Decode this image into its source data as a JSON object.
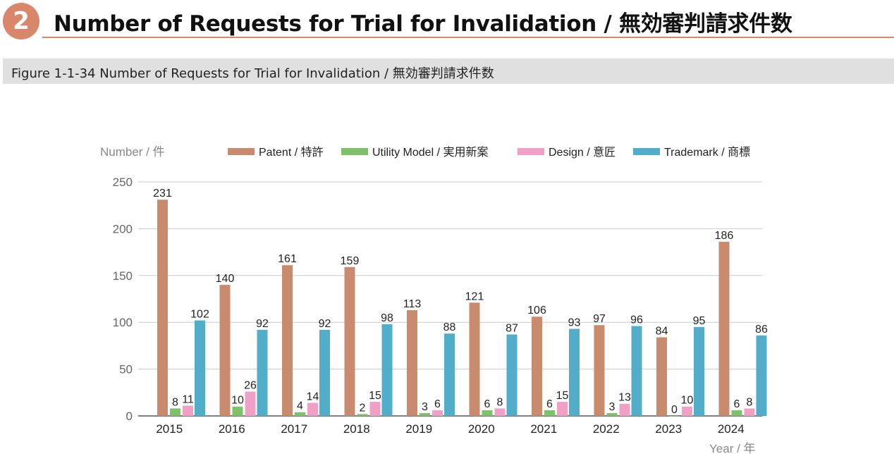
{
  "header": {
    "badge": "2",
    "title": "Number of Requests for Trial for Invalidation / 無効審判請求件数"
  },
  "figure": {
    "title": "Figure 1-1-34  Number of Requests for Trial for Invalidation / 無効審判請求件数"
  },
  "chart_data": {
    "type": "bar",
    "ylabel": "Number / 件",
    "xlabel": "Year / 年",
    "ylim": [
      0,
      250
    ],
    "yticks": [
      0,
      50,
      100,
      150,
      200,
      250
    ],
    "grid": true,
    "legend_position": "top",
    "categories": [
      "2015",
      "2016",
      "2017",
      "2018",
      "2019",
      "2020",
      "2021",
      "2022",
      "2023",
      "2024"
    ],
    "series": [
      {
        "name": "Patent / 特許",
        "color": "#c98b6e",
        "values": [
          231,
          140,
          161,
          159,
          113,
          121,
          106,
          97,
          84,
          186
        ]
      },
      {
        "name": "Utility Model / 実用新案",
        "color": "#7fc06a",
        "values": [
          8,
          10,
          4,
          2,
          3,
          6,
          6,
          3,
          0,
          6
        ]
      },
      {
        "name": "Design / 意匠",
        "color": "#f0a0c4",
        "values": [
          11,
          26,
          14,
          15,
          6,
          8,
          15,
          13,
          10,
          8
        ]
      },
      {
        "name": "Trademark / 商標",
        "color": "#52aec8",
        "values": [
          102,
          92,
          92,
          98,
          88,
          87,
          93,
          96,
          95,
          86
        ]
      }
    ]
  }
}
